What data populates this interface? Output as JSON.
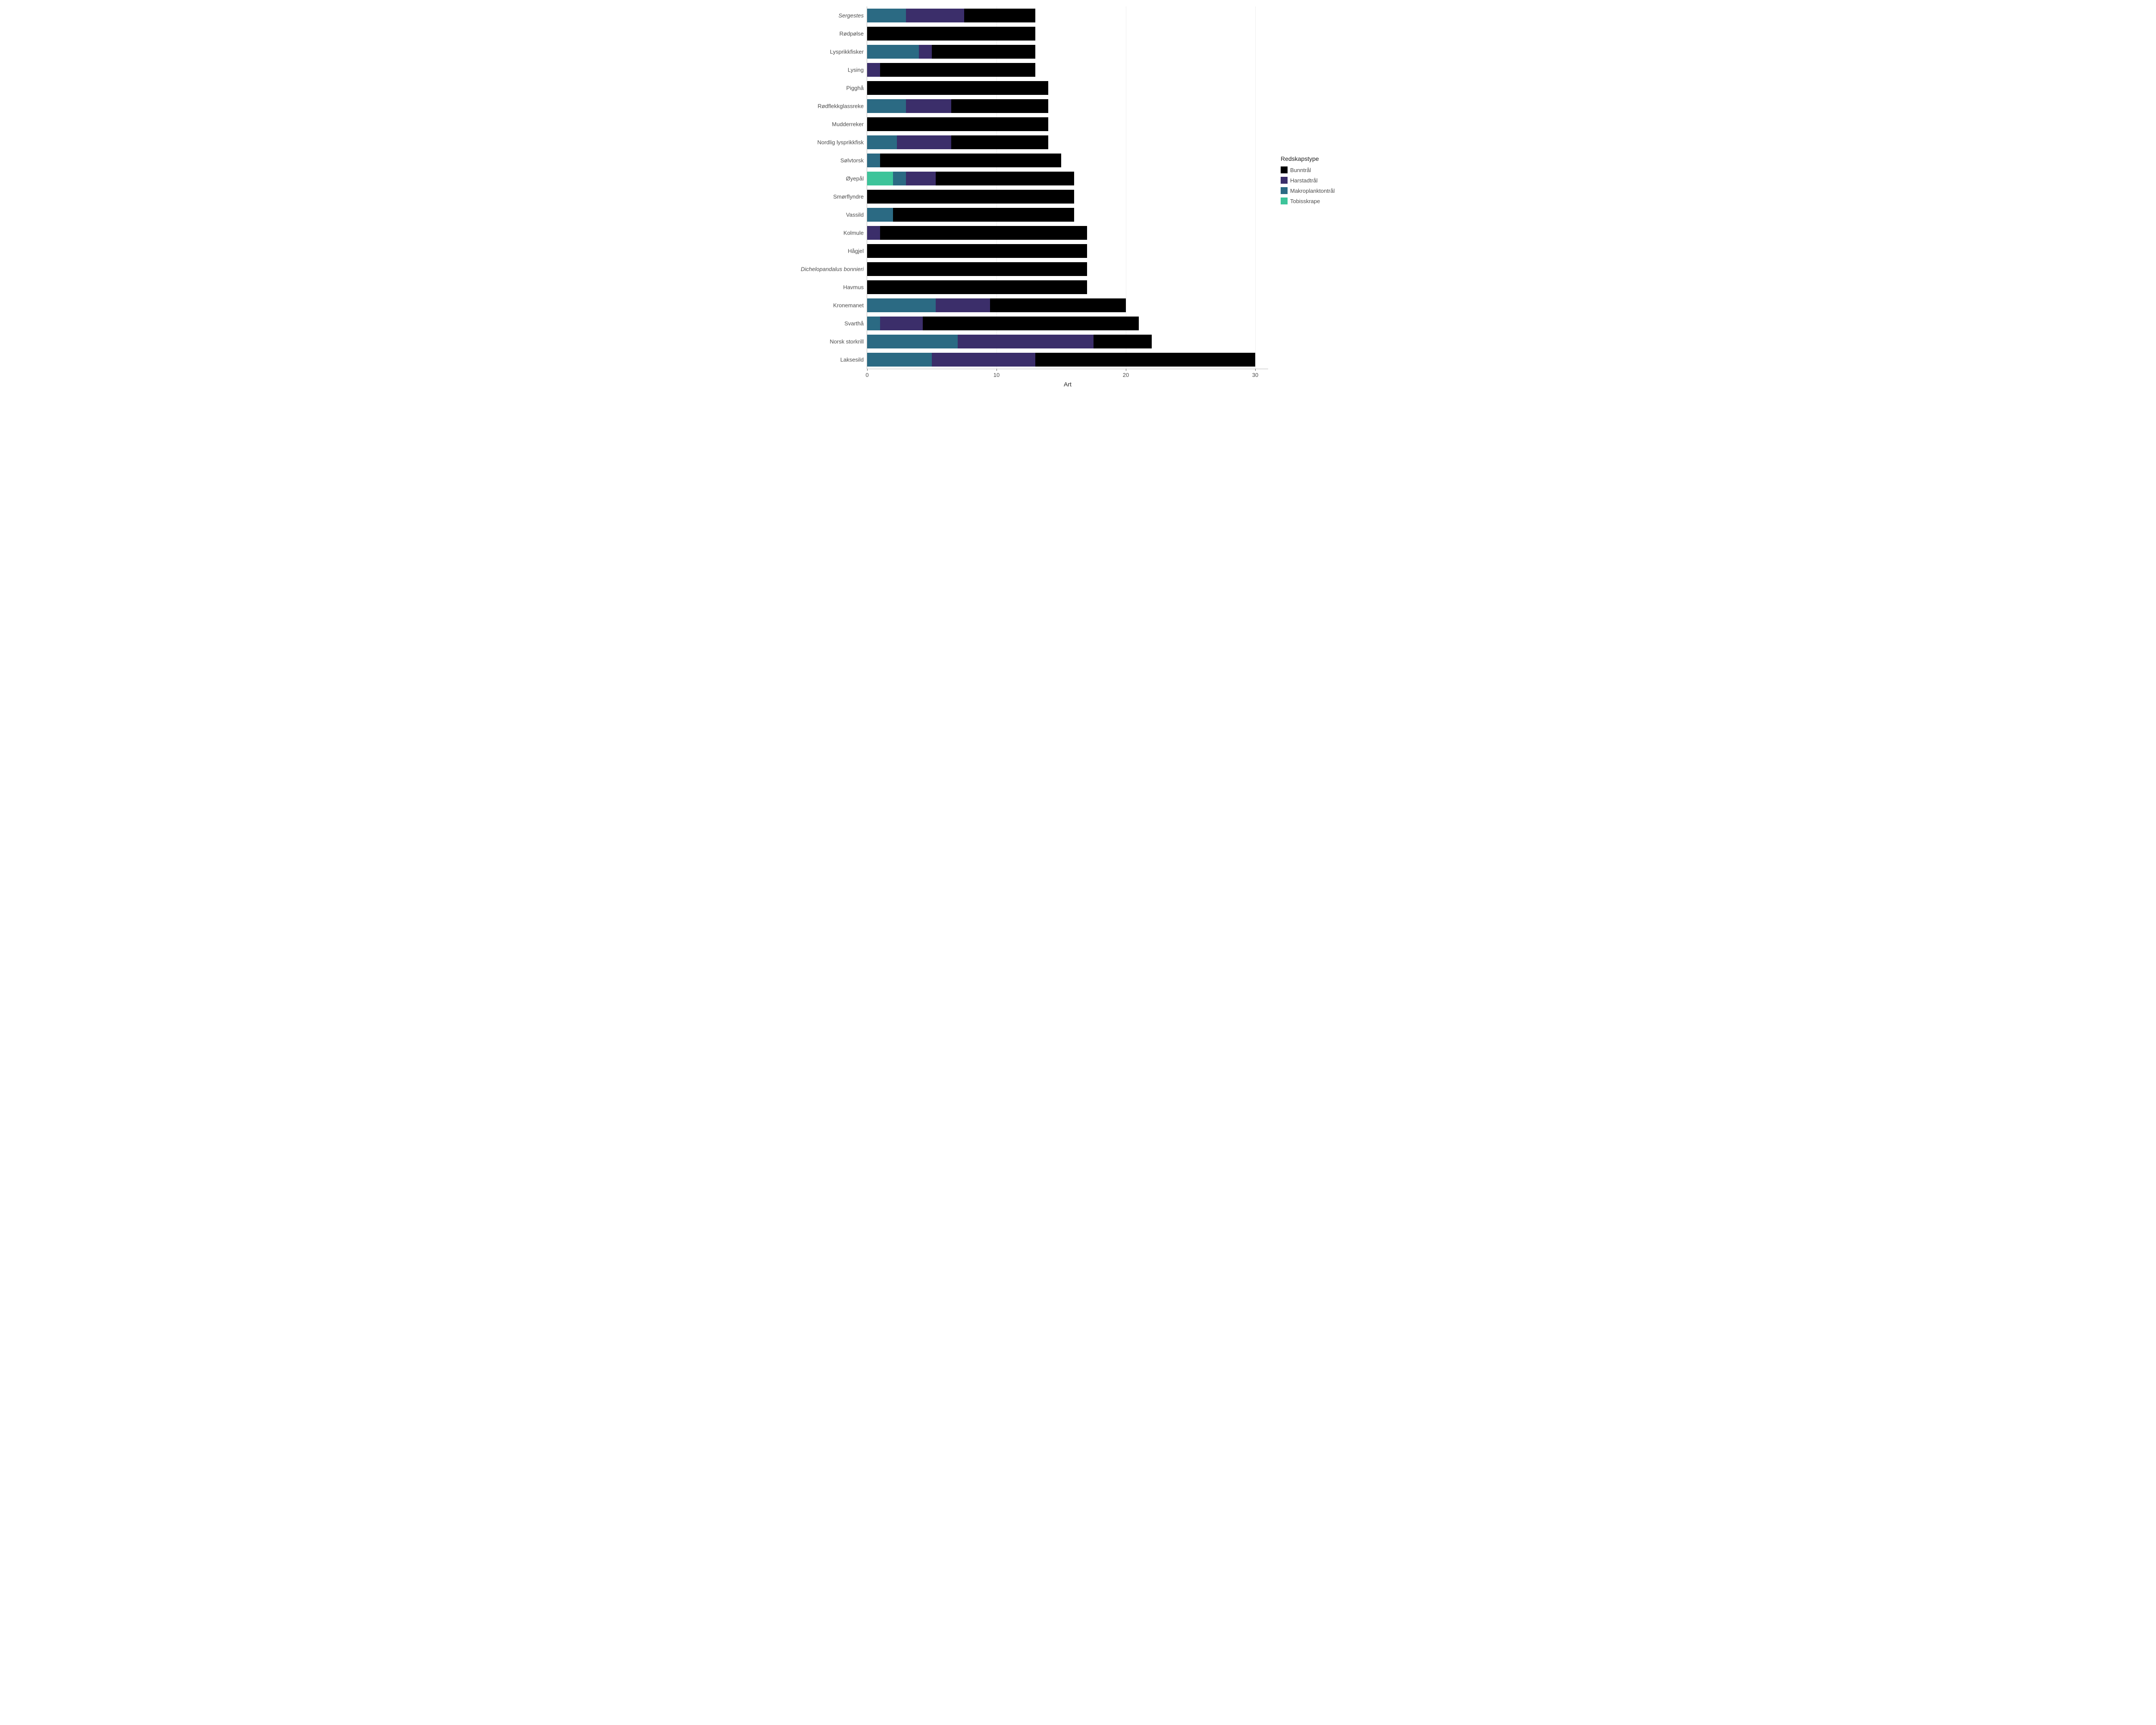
{
  "chart": {
    "type": "stacked-bar-horizontal",
    "background_color": "#ffffff",
    "grid_color": "#eeeeee",
    "axis_color": "#bbbbbb",
    "x_axis_label": "Art",
    "x_ticks": [
      0,
      10,
      20,
      30
    ],
    "x_lim": [
      0,
      31
    ],
    "label_fontsize": 13,
    "label_color": "#4d4d4d",
    "legend": {
      "title": "Redskapstype",
      "items": [
        {
          "key": "Bunntrål",
          "color": "#000000"
        },
        {
          "key": "Harstadtrål",
          "color": "#3b2e6a"
        },
        {
          "key": "Makroplanktontrål",
          "color": "#2b6a83"
        },
        {
          "key": "Tobisskrape",
          "color": "#3dc49a"
        }
      ]
    },
    "rows": [
      {
        "label": "Sergestes",
        "italic": true,
        "segments": [
          {
            "key": "Makroplanktontrål",
            "v": 3
          },
          {
            "key": "Harstadtrål",
            "v": 4.5
          },
          {
            "key": "Bunntrål",
            "v": 5.5
          }
        ]
      },
      {
        "label": "Rødpølse",
        "italic": false,
        "segments": [
          {
            "key": "Bunntrål",
            "v": 13
          }
        ]
      },
      {
        "label": "Lysprikkfisker",
        "italic": false,
        "segments": [
          {
            "key": "Makroplanktontrål",
            "v": 4
          },
          {
            "key": "Harstadtrål",
            "v": 1
          },
          {
            "key": "Bunntrål",
            "v": 8
          }
        ]
      },
      {
        "label": "Lysing",
        "italic": false,
        "segments": [
          {
            "key": "Harstadtrål",
            "v": 1
          },
          {
            "key": "Bunntrål",
            "v": 12
          }
        ]
      },
      {
        "label": "Pigghå",
        "italic": false,
        "segments": [
          {
            "key": "Bunntrål",
            "v": 14
          }
        ]
      },
      {
        "label": "Rødflekkglassreke",
        "italic": false,
        "segments": [
          {
            "key": "Makroplanktontrål",
            "v": 3
          },
          {
            "key": "Harstadtrål",
            "v": 3.5
          },
          {
            "key": "Bunntrål",
            "v": 7.5
          }
        ]
      },
      {
        "label": "Mudderreker",
        "italic": false,
        "segments": [
          {
            "key": "Bunntrål",
            "v": 14
          }
        ]
      },
      {
        "label": "Nordlig lysprikkfisk",
        "italic": false,
        "segments": [
          {
            "key": "Makroplanktontrål",
            "v": 2.3
          },
          {
            "key": "Harstadtrål",
            "v": 4.2
          },
          {
            "key": "Bunntrål",
            "v": 7.5
          }
        ]
      },
      {
        "label": "Sølvtorsk",
        "italic": false,
        "segments": [
          {
            "key": "Makroplanktontrål",
            "v": 1
          },
          {
            "key": "Bunntrål",
            "v": 14
          }
        ]
      },
      {
        "label": "Øyepål",
        "italic": false,
        "segments": [
          {
            "key": "Tobisskrape",
            "v": 2
          },
          {
            "key": "Makroplanktontrål",
            "v": 1
          },
          {
            "key": "Harstadtrål",
            "v": 2.3
          },
          {
            "key": "Bunntrål",
            "v": 10.7
          }
        ]
      },
      {
        "label": "Smørflyndre",
        "italic": false,
        "segments": [
          {
            "key": "Bunntrål",
            "v": 16
          }
        ]
      },
      {
        "label": "Vassild",
        "italic": false,
        "segments": [
          {
            "key": "Makroplanktontrål",
            "v": 2
          },
          {
            "key": "Bunntrål",
            "v": 14
          }
        ]
      },
      {
        "label": "Kolmule",
        "italic": false,
        "segments": [
          {
            "key": "Harstadtrål",
            "v": 1
          },
          {
            "key": "Bunntrål",
            "v": 16
          }
        ]
      },
      {
        "label": "Hågjel",
        "italic": false,
        "segments": [
          {
            "key": "Bunntrål",
            "v": 17
          }
        ]
      },
      {
        "label": "Dichelopandalus bonnieri",
        "italic": true,
        "segments": [
          {
            "key": "Bunntrål",
            "v": 17
          }
        ]
      },
      {
        "label": "Havmus",
        "italic": false,
        "segments": [
          {
            "key": "Bunntrål",
            "v": 17
          }
        ]
      },
      {
        "label": "Kronemanet",
        "italic": false,
        "segments": [
          {
            "key": "Makroplanktontrål",
            "v": 5.3
          },
          {
            "key": "Harstadtrål",
            "v": 4.2
          },
          {
            "key": "Bunntrål",
            "v": 10.5
          }
        ]
      },
      {
        "label": "Svarthå",
        "italic": false,
        "segments": [
          {
            "key": "Makroplanktontrål",
            "v": 1
          },
          {
            "key": "Harstadtrål",
            "v": 3.3
          },
          {
            "key": "Bunntrål",
            "v": 16.7
          }
        ]
      },
      {
        "label": "Norsk storkrill",
        "italic": false,
        "segments": [
          {
            "key": "Makroplanktontrål",
            "v": 7
          },
          {
            "key": "Harstadtrål",
            "v": 10.5
          },
          {
            "key": "Bunntrål",
            "v": 4.5
          }
        ]
      },
      {
        "label": "Laksesild",
        "italic": false,
        "segments": [
          {
            "key": "Makroplanktontrål",
            "v": 5
          },
          {
            "key": "Harstadtrål",
            "v": 8
          },
          {
            "key": "Bunntrål",
            "v": 17
          }
        ]
      }
    ]
  }
}
